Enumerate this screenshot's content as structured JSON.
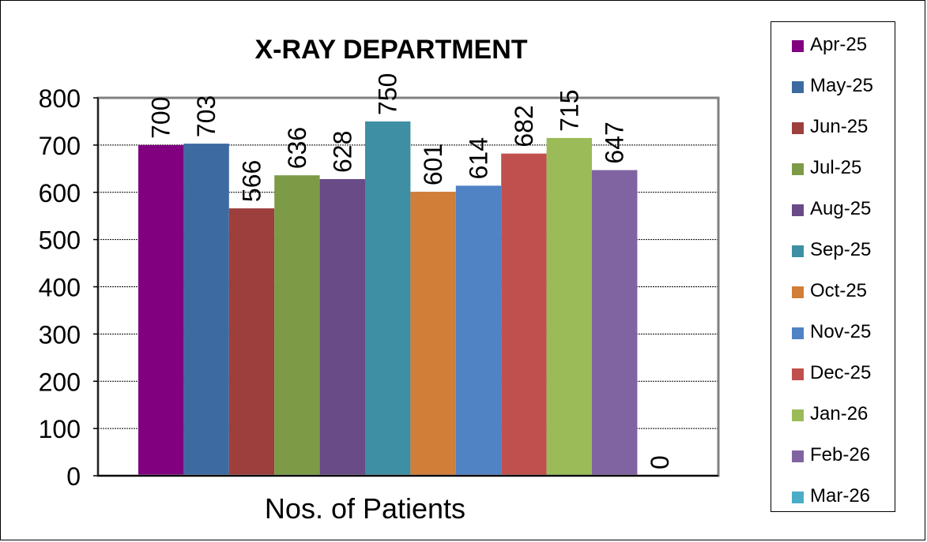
{
  "chart_data": {
    "type": "bar",
    "title": "X-RAY DEPARTMENT",
    "categories": [
      "Nos. of Patients"
    ],
    "series": [
      {
        "name": "Apr-25",
        "value": 700,
        "color": "#800080"
      },
      {
        "name": "May-25",
        "value": 703,
        "color": "#3D6BA1"
      },
      {
        "name": "Jun-25",
        "value": 566,
        "color": "#9C3F3D"
      },
      {
        "name": "Jul-25",
        "value": 636,
        "color": "#7D9B47"
      },
      {
        "name": "Aug-25",
        "value": 628,
        "color": "#694B88"
      },
      {
        "name": "Sep-25",
        "value": 750,
        "color": "#3E8FA3"
      },
      {
        "name": "Oct-25",
        "value": 601,
        "color": "#D07E38"
      },
      {
        "name": "Nov-25",
        "value": 614,
        "color": "#4F83C4"
      },
      {
        "name": "Dec-25",
        "value": 682,
        "color": "#C0504D"
      },
      {
        "name": "Jan-26",
        "value": 715,
        "color": "#9BBB59"
      },
      {
        "name": "Feb-26",
        "value": 647,
        "color": "#8064A2"
      },
      {
        "name": "Mar-26",
        "value": 0,
        "color": "#4BACC6"
      }
    ],
    "ylim": [
      0,
      800
    ],
    "yticks": [
      0,
      100,
      200,
      300,
      400,
      500,
      600,
      700,
      800
    ],
    "grid": true,
    "legend_position": "right"
  }
}
